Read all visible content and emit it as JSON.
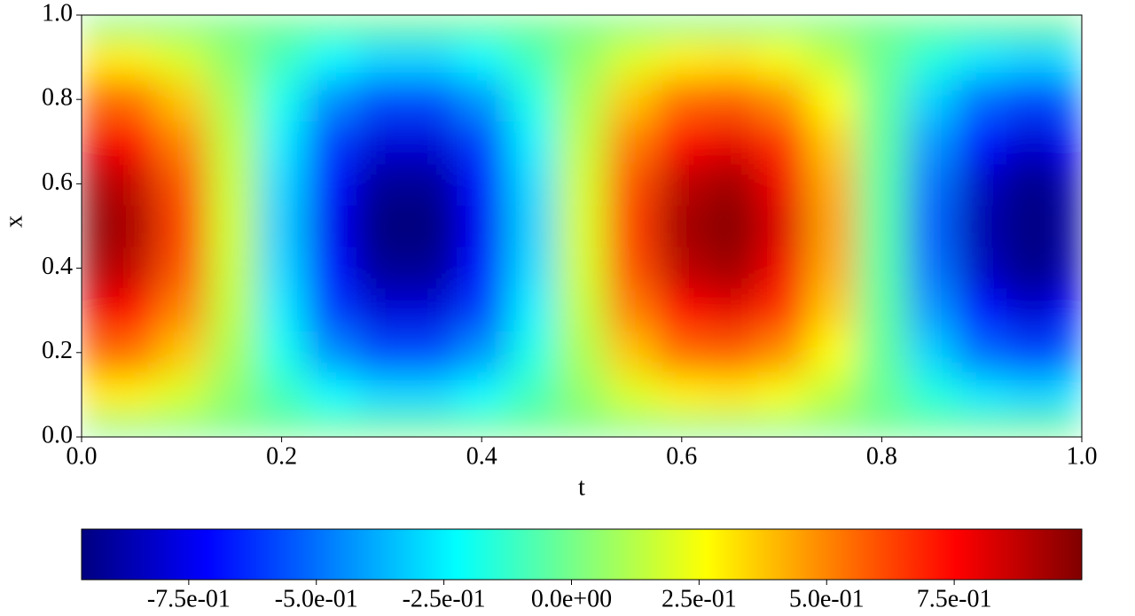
{
  "chart_data": {
    "type": "heatmap",
    "xlabel": "t",
    "ylabel": "x",
    "colormap": "jet",
    "t": [
      0,
      0.05,
      0.1,
      0.15,
      0.2,
      0.25,
      0.3,
      0.35,
      0.4,
      0.45,
      0.5,
      0.55,
      0.6,
      0.65,
      0.7,
      0.75,
      0.8,
      0.85,
      0.9,
      0.95,
      1
    ],
    "x": [
      0,
      0.1,
      0.2,
      0.3,
      0.4,
      0.5,
      0.6,
      0.7,
      0.8,
      0.9,
      1
    ],
    "z": [
      [
        0,
        0,
        0,
        0,
        0,
        0,
        0,
        0,
        0,
        0,
        0,
        0,
        0,
        0,
        0,
        0,
        0,
        0,
        0,
        0,
        0
      ],
      [
        0.31,
        0.29,
        0.19,
        0.05,
        -0.1,
        -0.23,
        -0.3,
        -0.3,
        -0.23,
        -0.1,
        0.06,
        0.2,
        0.29,
        0.31,
        0.25,
        0.14,
        -0.02,
        -0.16,
        -0.27,
        -0.31,
        -0.28
      ],
      [
        0.58,
        0.54,
        0.37,
        0.1,
        -0.19,
        -0.44,
        -0.57,
        -0.57,
        -0.43,
        -0.18,
        0.11,
        0.37,
        0.55,
        0.58,
        0.48,
        0.26,
        -0.03,
        -0.31,
        -0.51,
        -0.59,
        -0.53
      ],
      [
        0.8,
        0.75,
        0.5,
        0.14,
        -0.26,
        -0.6,
        -0.79,
        -0.79,
        -0.59,
        -0.25,
        0.15,
        0.51,
        0.75,
        0.8,
        0.66,
        0.36,
        -0.04,
        -0.42,
        -0.7,
        -0.81,
        -0.72
      ],
      [
        0.94,
        0.87,
        0.59,
        0.16,
        -0.3,
        -0.7,
        -0.92,
        -0.92,
        -0.69,
        -0.29,
        0.18,
        0.6,
        0.88,
        0.94,
        0.78,
        0.42,
        -0.05,
        -0.49,
        -0.83,
        -0.95,
        -0.85
      ],
      [
        0.99,
        0.92,
        0.62,
        0.17,
        -0.32,
        -0.74,
        -0.97,
        -0.97,
        -0.73,
        -0.31,
        0.19,
        0.63,
        0.93,
        0.99,
        0.82,
        0.44,
        -0.05,
        -0.52,
        -0.87,
        -0.96,
        -0.89
      ],
      [
        0.94,
        0.87,
        0.59,
        0.16,
        -0.3,
        -0.7,
        -0.92,
        -0.92,
        -0.69,
        -0.29,
        0.18,
        0.6,
        0.88,
        0.94,
        0.78,
        0.42,
        -0.05,
        -0.49,
        -0.83,
        -0.95,
        -0.85
      ],
      [
        0.8,
        0.75,
        0.5,
        0.14,
        -0.26,
        -0.6,
        -0.79,
        -0.79,
        -0.59,
        -0.25,
        0.15,
        0.51,
        0.75,
        0.8,
        0.66,
        0.36,
        -0.04,
        -0.42,
        -0.7,
        -0.81,
        -0.72
      ],
      [
        0.58,
        0.54,
        0.37,
        0.1,
        -0.19,
        -0.44,
        -0.57,
        -0.57,
        -0.43,
        -0.18,
        0.11,
        0.37,
        0.55,
        0.58,
        0.48,
        0.26,
        -0.03,
        -0.31,
        -0.51,
        -0.59,
        -0.53
      ],
      [
        0.31,
        0.29,
        0.19,
        0.05,
        -0.1,
        -0.23,
        -0.3,
        -0.3,
        -0.23,
        -0.1,
        0.06,
        0.2,
        0.29,
        0.31,
        0.25,
        0.14,
        -0.02,
        -0.16,
        -0.27,
        -0.31,
        -0.28
      ],
      [
        0,
        0,
        0,
        0,
        0,
        0,
        0,
        0,
        0,
        0,
        0,
        0,
        0,
        0,
        0,
        0,
        0,
        0,
        0,
        0,
        0
      ]
    ],
    "xlim": [
      0,
      1
    ],
    "ylim": [
      0,
      1
    ],
    "xticks": [
      {
        "value": 0,
        "label": "0.0"
      },
      0.2,
      0.4,
      0.6,
      0.8,
      {
        "value": 1,
        "label": "1.0"
      }
    ],
    "yticks": [
      {
        "value": 0,
        "label": "0.0"
      },
      0.2,
      0.4,
      0.6,
      0.8,
      {
        "value": 1,
        "label": "1.0"
      }
    ],
    "colorbar": {
      "lim": [
        -0.96,
        1.0
      ],
      "ticks": [
        {
          "value": -0.75,
          "label": "-7.5e-01"
        },
        {
          "value": -0.5,
          "label": "-5.0e-01"
        },
        {
          "value": -0.25,
          "label": "-2.5e-01"
        },
        {
          "value": 0,
          "label": "0.0e+00"
        },
        {
          "value": 0.25,
          "label": "2.5e-01"
        },
        {
          "value": 0.5,
          "label": "5.0e-01"
        },
        {
          "value": 0.75,
          "label": "7.5e-01"
        }
      ]
    }
  }
}
